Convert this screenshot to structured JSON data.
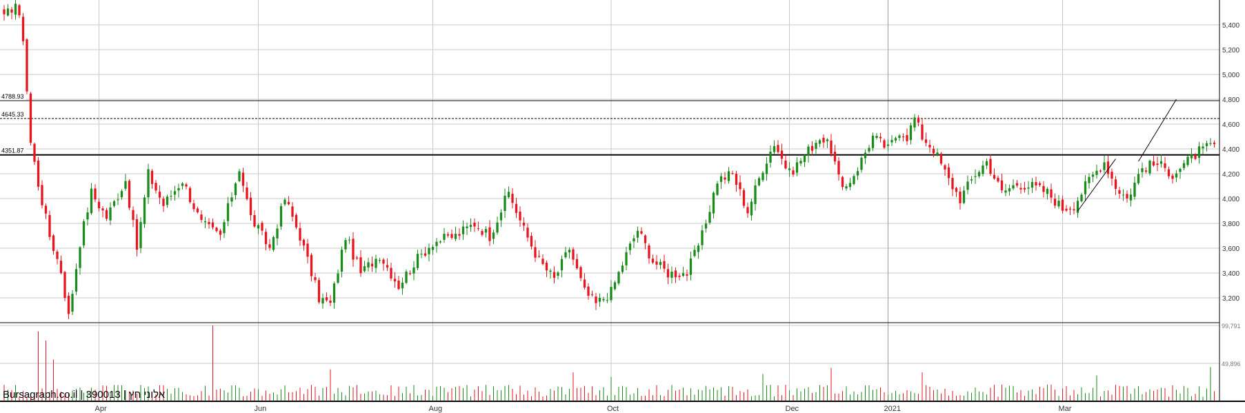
{
  "watermark": "Bursagraph.co.il | 390013 | אלוני חץ",
  "colors": {
    "up": "#1a8a1a",
    "down": "#e8141e",
    "grid": "#c8c8c8",
    "axis": "#000000",
    "text": "#333333"
  },
  "chart_data": {
    "type": "candlestick",
    "price_axis": {
      "min": 3000,
      "max": 5600,
      "ticks": [
        3200,
        3400,
        3600,
        3800,
        4000,
        4200,
        4400,
        4600,
        4800,
        5000,
        5200,
        5400
      ]
    },
    "volume_axis": {
      "max": 99791,
      "ticks": [
        49896,
        99791
      ]
    },
    "x_labels": [
      {
        "label": "Apr",
        "i": 25
      },
      {
        "label": "Jun",
        "i": 67
      },
      {
        "label": "Aug",
        "i": 113
      },
      {
        "label": "Oct",
        "i": 160
      },
      {
        "label": "Dec",
        "i": 207
      },
      {
        "label": "2021",
        "i": 233
      },
      {
        "label": "Mar",
        "i": 279
      }
    ],
    "levels": [
      {
        "value": 4788.93,
        "label": "4788.93",
        "style": "solid-thin"
      },
      {
        "value": 4645.33,
        "label": "4645.33",
        "style": "dashed"
      },
      {
        "value": 4351.87,
        "label": "4351.87",
        "style": "solid-thick"
      }
    ],
    "trendlines": [
      {
        "from": [
          283,
          3900
        ],
        "to": [
          293,
          4320
        ]
      },
      {
        "from": [
          299,
          4300
        ],
        "to": [
          309,
          4800
        ]
      }
    ],
    "anchors": [
      [
        0,
        5450
      ],
      [
        3,
        5580
      ],
      [
        5,
        5300
      ],
      [
        7,
        4450
      ],
      [
        9,
        4120
      ],
      [
        12,
        3700
      ],
      [
        15,
        3420
      ],
      [
        17,
        3050
      ],
      [
        20,
        3650
      ],
      [
        23,
        4050
      ],
      [
        27,
        3850
      ],
      [
        32,
        4150
      ],
      [
        35,
        3600
      ],
      [
        38,
        4200
      ],
      [
        42,
        3950
      ],
      [
        47,
        4150
      ],
      [
        52,
        3800
      ],
      [
        57,
        3700
      ],
      [
        62,
        4250
      ],
      [
        65,
        3850
      ],
      [
        70,
        3600
      ],
      [
        74,
        4000
      ],
      [
        78,
        3700
      ],
      [
        83,
        3200
      ],
      [
        86,
        3150
      ],
      [
        90,
        3700
      ],
      [
        94,
        3400
      ],
      [
        99,
        3550
      ],
      [
        104,
        3300
      ],
      [
        108,
        3480
      ],
      [
        113,
        3650
      ],
      [
        119,
        3700
      ],
      [
        124,
        3800
      ],
      [
        128,
        3700
      ],
      [
        133,
        4050
      ],
      [
        137,
        3750
      ],
      [
        141,
        3500
      ],
      [
        145,
        3350
      ],
      [
        149,
        3600
      ],
      [
        153,
        3250
      ],
      [
        156,
        3150
      ],
      [
        160,
        3250
      ],
      [
        164,
        3550
      ],
      [
        167,
        3750
      ],
      [
        171,
        3500
      ],
      [
        175,
        3400
      ],
      [
        180,
        3400
      ],
      [
        184,
        3700
      ],
      [
        188,
        4150
      ],
      [
        192,
        4200
      ],
      [
        196,
        3900
      ],
      [
        200,
        4250
      ],
      [
        203,
        4450
      ],
      [
        207,
        4200
      ],
      [
        211,
        4350
      ],
      [
        215,
        4500
      ],
      [
        218,
        4400
      ],
      [
        221,
        4050
      ],
      [
        225,
        4250
      ],
      [
        229,
        4500
      ],
      [
        233,
        4400
      ],
      [
        236,
        4550
      ],
      [
        238,
        4500
      ],
      [
        240,
        4650
      ],
      [
        242,
        4500
      ],
      [
        245,
        4400
      ],
      [
        249,
        4150
      ],
      [
        252,
        4000
      ],
      [
        256,
        4200
      ],
      [
        259,
        4300
      ],
      [
        263,
        4050
      ],
      [
        267,
        4120
      ],
      [
        271,
        4100
      ],
      [
        275,
        4050
      ],
      [
        279,
        3920
      ],
      [
        282,
        3950
      ],
      [
        286,
        4150
      ],
      [
        290,
        4300
      ],
      [
        293,
        4100
      ],
      [
        296,
        4000
      ],
      [
        300,
        4250
      ],
      [
        304,
        4280
      ],
      [
        308,
        4200
      ],
      [
        312,
        4300
      ],
      [
        315,
        4380
      ],
      [
        318,
        4420
      ]
    ],
    "volume_spikes": {
      "9": 92000,
      "11": 80000,
      "13": 55000,
      "55": 99791,
      "86": 42000,
      "150": 38000,
      "160": 32000,
      "218": 44000,
      "242": 38000,
      "318": 45000,
      "200": 36000,
      "288": 34000
    }
  }
}
